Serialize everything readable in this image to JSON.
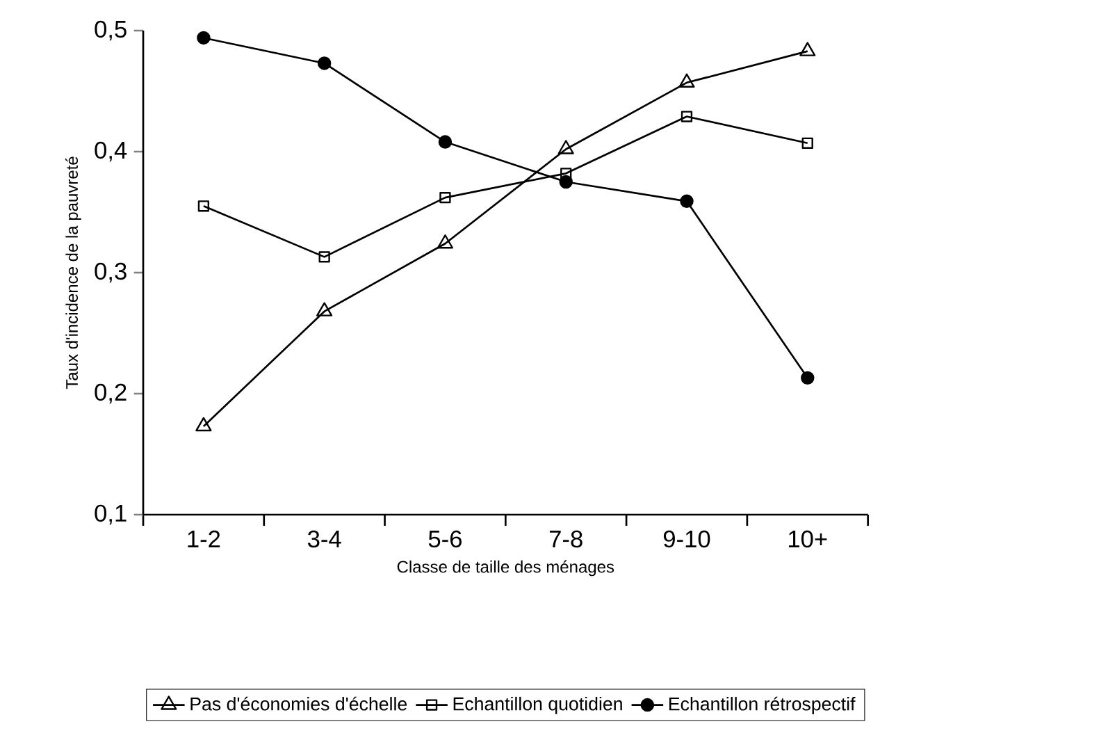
{
  "chart_data": {
    "type": "line",
    "xlabel": "Classe de taille des ménages",
    "ylabel": "Taux d'incidence de la pauvreté",
    "categories": [
      "1-2",
      "3-4",
      "5-6",
      "7-8",
      "9-10",
      "10+"
    ],
    "ylim": [
      0.1,
      0.5
    ],
    "yticks": [
      {
        "value": 0.1,
        "label": "0,1"
      },
      {
        "value": 0.2,
        "label": "0,2"
      },
      {
        "value": 0.3,
        "label": "0,3"
      },
      {
        "value": 0.4,
        "label": "0,4"
      },
      {
        "value": 0.5,
        "label": "0,5"
      }
    ],
    "grid": false,
    "legend": "bottom",
    "line_style": "solid",
    "series": [
      {
        "name": "Pas d'économies d'échelle",
        "color": "#000000",
        "marker": "triangle",
        "values": [
          0.173,
          0.268,
          0.324,
          0.402,
          0.457,
          0.483
        ]
      },
      {
        "name": "Echantillon quotidien",
        "color": "#000000",
        "marker": "square",
        "values": [
          0.355,
          0.313,
          0.362,
          0.382,
          0.429,
          0.407
        ]
      },
      {
        "name": "Echantillon rétrospectif",
        "color": "#000000",
        "marker": "circle",
        "values": [
          0.494,
          0.473,
          0.408,
          0.375,
          0.359,
          0.213
        ]
      }
    ]
  }
}
